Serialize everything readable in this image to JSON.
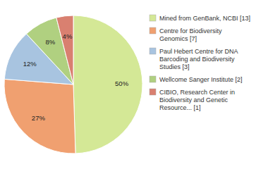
{
  "chart_data": {
    "type": "pie",
    "categories": [
      "Mined from GenBank, NCBI [13]",
      "Centre for Biodiversity\nGenomics [7]",
      "Paul Hebert Centre for DNA\nBarcoding and Biodiversity\nStudies [3]",
      "Wellcome Sanger Institute [2]",
      "CIBIO, Research Center in\nBiodiversity and Genetic\nResource... [1]"
    ],
    "values": [
      50,
      27,
      12,
      8,
      4
    ],
    "value_labels": [
      "50%",
      "27%",
      "12%",
      "8%",
      "4%"
    ],
    "colors": [
      "#d4e896",
      "#f0a070",
      "#a8c4e0",
      "#b0d080",
      "#d98070"
    ],
    "data_labels": true,
    "legend": "right"
  }
}
